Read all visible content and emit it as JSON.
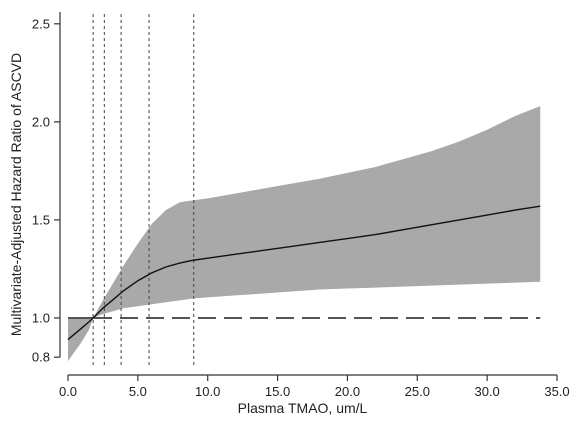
{
  "chart_data": {
    "type": "line",
    "xlabel": "Plasma TMAO, um/L",
    "ylabel": "Multivariate-Adjusted Hazard Ratio of ASCVD",
    "xlim": [
      0,
      35
    ],
    "ylim": [
      0.75,
      2.55
    ],
    "x_ticks": [
      0,
      5,
      10,
      15,
      20,
      25,
      30,
      35
    ],
    "x_tick_labels": [
      "0.0",
      "5.0",
      "10.0",
      "15.0",
      "20.0",
      "25.0",
      "30.0",
      "35.0"
    ],
    "y_ticks": [
      0.8,
      1.0,
      1.5,
      2.0,
      2.5
    ],
    "y_tick_labels": [
      "0.8",
      "1.0",
      "1.5",
      "2.0",
      "2.5"
    ],
    "reference_hr": 1.0,
    "reference_segment_x": [
      0,
      1.8
    ],
    "cutpoints_x": [
      1.8,
      2.6,
      3.8,
      5.8,
      9.0
    ],
    "x": [
      0,
      0.5,
      1,
      1.5,
      1.8,
      2.5,
      3,
      4,
      5,
      6,
      7,
      8,
      9,
      10,
      12,
      14,
      16,
      18,
      20,
      22,
      24,
      26,
      28,
      30,
      32,
      33.8
    ],
    "hazard_ratio": [
      0.89,
      0.92,
      0.95,
      0.98,
      1.0,
      1.05,
      1.08,
      1.14,
      1.19,
      1.23,
      1.26,
      1.28,
      1.295,
      1.305,
      1.325,
      1.345,
      1.365,
      1.385,
      1.405,
      1.425,
      1.45,
      1.475,
      1.5,
      1.525,
      1.55,
      1.57
    ],
    "ci_lower": [
      0.78,
      0.83,
      0.88,
      0.94,
      1.0,
      1.02,
      1.03,
      1.05,
      1.06,
      1.07,
      1.08,
      1.09,
      1.1,
      1.105,
      1.115,
      1.125,
      1.135,
      1.145,
      1.15,
      1.155,
      1.16,
      1.165,
      1.17,
      1.175,
      1.18,
      1.185
    ],
    "ci_upper": [
      1.0,
      1.0,
      1.0,
      1.0,
      1.0,
      1.09,
      1.15,
      1.27,
      1.38,
      1.48,
      1.55,
      1.59,
      1.6,
      1.61,
      1.635,
      1.66,
      1.685,
      1.71,
      1.74,
      1.77,
      1.81,
      1.85,
      1.9,
      1.96,
      2.03,
      2.08
    ],
    "grid": false,
    "legend": "none",
    "colors": {
      "band": "#a9a9a9",
      "line": "#111111",
      "reference": "#555555",
      "cutpoint": "#444444"
    }
  }
}
